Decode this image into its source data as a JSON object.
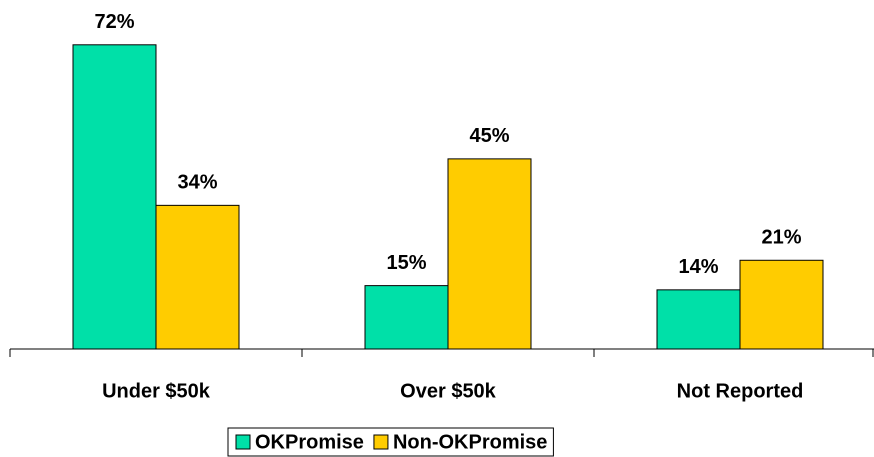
{
  "chart_data": {
    "type": "bar",
    "categories": [
      "Under $50k",
      "Over $50k",
      "Not Reported"
    ],
    "series": [
      {
        "name": "OKPromise",
        "color": "#00e0a8",
        "values": [
          72,
          15,
          14
        ],
        "value_labels": [
          "72%",
          "15%",
          "14%"
        ]
      },
      {
        "name": "Non-OKPromise",
        "color": "#ffcc00",
        "values": [
          34,
          45,
          21
        ],
        "value_labels": [
          "34%",
          "45%",
          "21%"
        ]
      }
    ],
    "ylim": [
      0,
      80
    ],
    "legend": "bottom"
  }
}
